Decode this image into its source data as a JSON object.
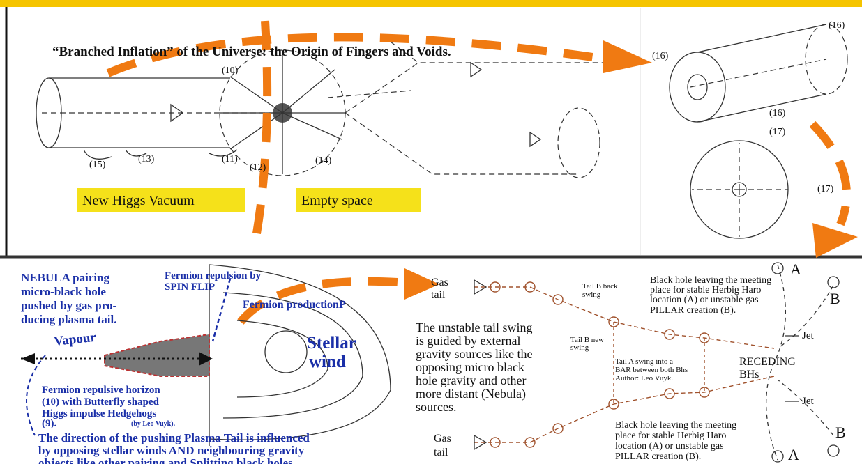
{
  "header": {
    "title": "“Branched Inflation” of the Universe: the Origin of Fingers and Voids."
  },
  "top_panel": {
    "markers": [
      "(10)",
      "(15)",
      "(13)",
      "(11)",
      "(12)",
      "(14)",
      "(16)",
      "(16)",
      "(16)",
      "(17)",
      "(17)"
    ],
    "boxes": [
      "New Higgs Vacuum",
      "Empty space"
    ]
  },
  "bottom_left": {
    "nebula": [
      "NEBULA pairing",
      "micro-black hole",
      "pushed by gas pro-",
      "ducing plasma tail."
    ],
    "spin_flip": [
      "Fermion repulsion by",
      "SPIN FLIP"
    ],
    "production": "Fermion productionP",
    "vapour": "Vapour",
    "stellar_wind": [
      "Stellar",
      "wind"
    ],
    "horizon": [
      "Fermion repulsive horizon",
      "(10) with Butterfly shaped",
      "Higgs impulse Hedgehogs",
      "(9)."
    ],
    "credit": "(by Leo Vuyk).",
    "direction": [
      "The direction of the pushing Plasma Tail is influenced",
      "by opposing stellar winds AND neighbouring gravity",
      "objects like other pairing and Splitting black holes"
    ]
  },
  "bottom_right": {
    "gas_tail_top": [
      "Gas",
      "tail"
    ],
    "gas_tail_bottom": [
      "Gas",
      "tail"
    ],
    "back_swing": [
      "Tail B back",
      "swing"
    ],
    "new_swing": [
      "Tail B new",
      "swing"
    ],
    "unstable": [
      "The unstable tail swing",
      "is guided by external",
      "gravity sources like the",
      "opposing micro black",
      "hole gravity and other",
      "more distant (Nebula)",
      "sources."
    ],
    "leaving_top": [
      "Black hole leaving the meeting",
      "place for stable Herbig Haro",
      "location (A) or unstable gas",
      "PILLAR creation (B)."
    ],
    "leaving_bottom": [
      "Black hole leaving the meeting",
      "place for stable Herbig Haro",
      "location (A) or unstable gas",
      "PILLAR creation (B)."
    ],
    "tail_a": [
      "Tail A swing into a",
      "BAR between both Bhs",
      "Author: Leo Vuyk."
    ],
    "receding": [
      "RECEDING",
      "BHs"
    ],
    "jets": [
      "Jet",
      "Jet"
    ],
    "letters": [
      "A",
      "B",
      "B",
      "A"
    ]
  }
}
